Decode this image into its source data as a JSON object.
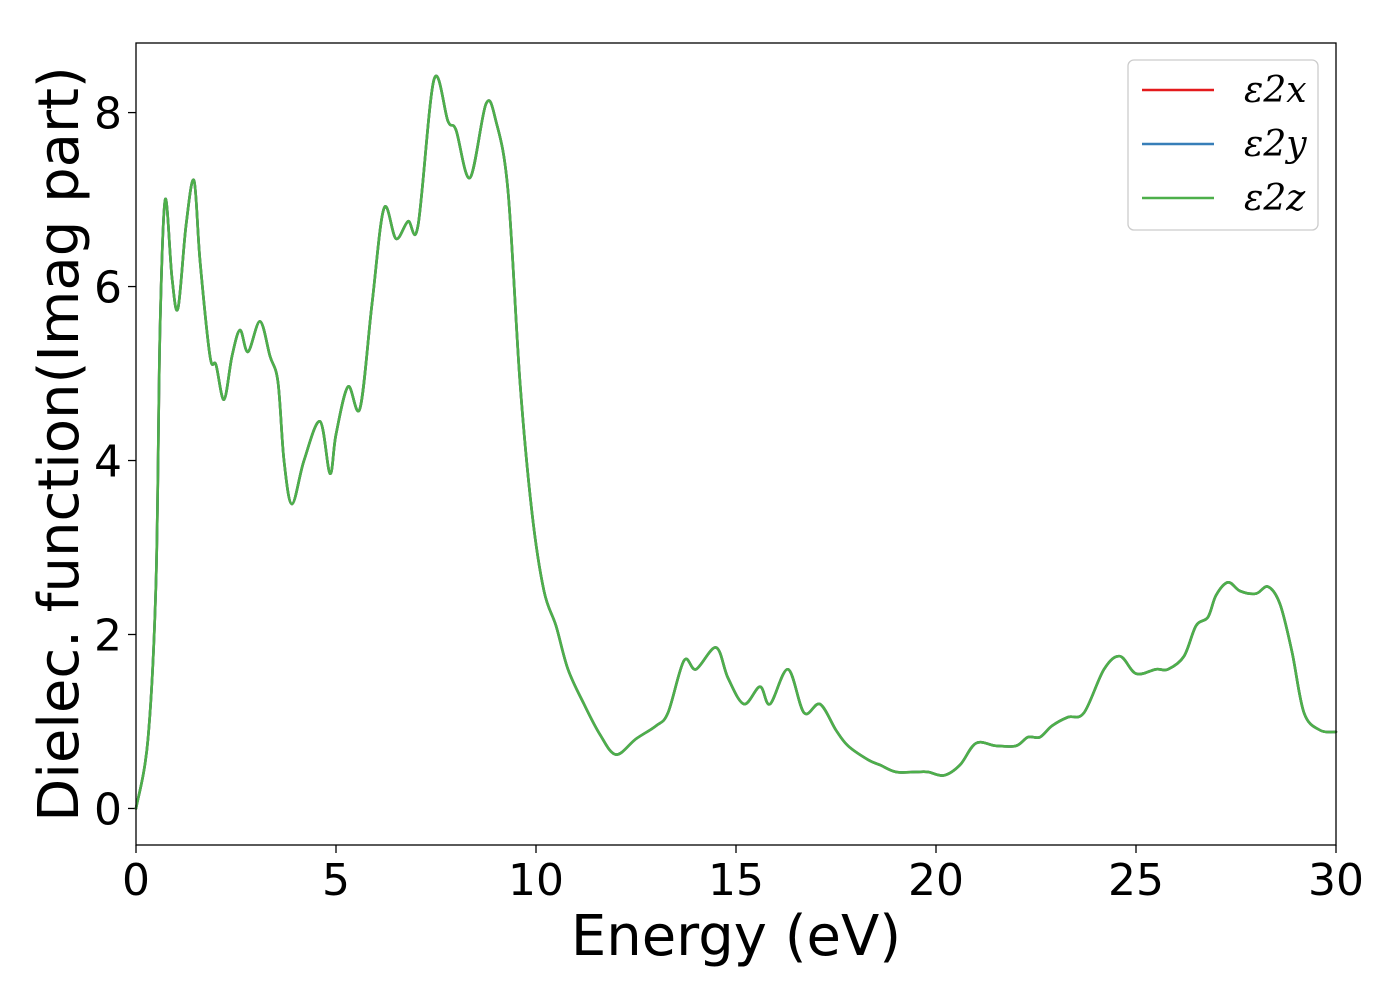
{
  "chart_data": {
    "type": "line",
    "xlabel": "Energy (eV)",
    "ylabel": "Dielec. function(Imag part)",
    "xlim": [
      0,
      30
    ],
    "ylim": [
      -0.42,
      8.8
    ],
    "xticks": [
      0,
      5,
      10,
      15,
      20,
      25,
      30
    ],
    "yticks": [
      0,
      2,
      4,
      6,
      8
    ],
    "legend_position": "top-right",
    "grid": false,
    "series": [
      {
        "name": "ε2x",
        "color": "#e41a1c",
        "x": [
          0,
          0.3,
          0.5,
          0.6,
          0.73,
          0.9,
          1.05,
          1.25,
          1.45,
          1.6,
          1.85,
          2.0,
          2.2,
          2.4,
          2.6,
          2.8,
          3.1,
          3.35,
          3.55,
          3.7,
          3.9,
          4.2,
          4.6,
          4.85,
          5.0,
          5.3,
          5.6,
          5.9,
          6.2,
          6.5,
          6.8,
          7.05,
          7.45,
          7.8,
          8.0,
          8.35,
          8.75,
          9.0,
          9.3,
          9.6,
          9.9,
          10.2,
          10.5,
          10.8,
          11.2,
          11.6,
          12.0,
          12.5,
          13.0,
          13.3,
          13.7,
          14.0,
          14.5,
          14.8,
          15.2,
          15.6,
          15.85,
          16.3,
          16.7,
          17.1,
          17.5,
          17.8,
          18.3,
          18.6,
          19.0,
          19.5,
          19.8,
          20.2,
          20.6,
          21.0,
          21.5,
          22.0,
          22.3,
          22.6,
          22.9,
          23.3,
          23.7,
          24.2,
          24.6,
          25.0,
          25.5,
          25.8,
          26.2,
          26.5,
          26.8,
          27.0,
          27.3,
          27.6,
          28.0,
          28.3,
          28.6,
          28.9,
          29.2,
          29.6,
          30.0
        ],
        "y": [
          0.0,
          0.8,
          2.6,
          5.5,
          7.0,
          6.1,
          5.75,
          6.7,
          7.22,
          6.3,
          5.2,
          5.1,
          4.7,
          5.2,
          5.5,
          5.25,
          5.6,
          5.2,
          4.9,
          4.0,
          3.5,
          4.0,
          4.45,
          3.85,
          4.3,
          4.85,
          4.6,
          5.8,
          6.9,
          6.55,
          6.75,
          6.7,
          8.38,
          7.9,
          7.8,
          7.25,
          8.1,
          7.9,
          7.1,
          4.9,
          3.4,
          2.5,
          2.1,
          1.6,
          1.2,
          0.85,
          0.62,
          0.8,
          0.95,
          1.1,
          1.7,
          1.6,
          1.85,
          1.5,
          1.2,
          1.4,
          1.2,
          1.6,
          1.1,
          1.2,
          0.9,
          0.72,
          0.56,
          0.5,
          0.42,
          0.42,
          0.42,
          0.38,
          0.5,
          0.75,
          0.72,
          0.72,
          0.82,
          0.82,
          0.95,
          1.05,
          1.1,
          1.6,
          1.75,
          1.55,
          1.6,
          1.6,
          1.75,
          2.1,
          2.2,
          2.45,
          2.6,
          2.5,
          2.47,
          2.55,
          2.35,
          1.8,
          1.1,
          0.9,
          0.88
        ]
      },
      {
        "name": "ε2y",
        "color": "#377eb8",
        "x": [
          0,
          0.3,
          0.5,
          0.6,
          0.73,
          0.9,
          1.05,
          1.25,
          1.45,
          1.6,
          1.85,
          2.0,
          2.2,
          2.4,
          2.6,
          2.8,
          3.1,
          3.35,
          3.55,
          3.7,
          3.9,
          4.2,
          4.6,
          4.85,
          5.0,
          5.3,
          5.6,
          5.9,
          6.2,
          6.5,
          6.8,
          7.05,
          7.45,
          7.8,
          8.0,
          8.35,
          8.75,
          9.0,
          9.3,
          9.6,
          9.9,
          10.2,
          10.5,
          10.8,
          11.2,
          11.6,
          12.0,
          12.5,
          13.0,
          13.3,
          13.7,
          14.0,
          14.5,
          14.8,
          15.2,
          15.6,
          15.85,
          16.3,
          16.7,
          17.1,
          17.5,
          17.8,
          18.3,
          18.6,
          19.0,
          19.5,
          19.8,
          20.2,
          20.6,
          21.0,
          21.5,
          22.0,
          22.3,
          22.6,
          22.9,
          23.3,
          23.7,
          24.2,
          24.6,
          25.0,
          25.5,
          25.8,
          26.2,
          26.5,
          26.8,
          27.0,
          27.3,
          27.6,
          28.0,
          28.3,
          28.6,
          28.9,
          29.2,
          29.6,
          30.0
        ],
        "y": [
          0.0,
          0.8,
          2.6,
          5.5,
          7.0,
          6.1,
          5.75,
          6.7,
          7.22,
          6.3,
          5.2,
          5.1,
          4.7,
          5.2,
          5.5,
          5.25,
          5.6,
          5.2,
          4.9,
          4.0,
          3.5,
          4.0,
          4.45,
          3.85,
          4.3,
          4.85,
          4.6,
          5.8,
          6.9,
          6.55,
          6.75,
          6.7,
          8.38,
          7.9,
          7.8,
          7.25,
          8.1,
          7.9,
          7.1,
          4.9,
          3.4,
          2.5,
          2.1,
          1.6,
          1.2,
          0.85,
          0.62,
          0.8,
          0.95,
          1.1,
          1.7,
          1.6,
          1.85,
          1.5,
          1.2,
          1.4,
          1.2,
          1.6,
          1.1,
          1.2,
          0.9,
          0.72,
          0.56,
          0.5,
          0.42,
          0.42,
          0.42,
          0.38,
          0.5,
          0.75,
          0.72,
          0.72,
          0.82,
          0.82,
          0.95,
          1.05,
          1.1,
          1.6,
          1.75,
          1.55,
          1.6,
          1.6,
          1.75,
          2.1,
          2.2,
          2.45,
          2.6,
          2.5,
          2.47,
          2.55,
          2.35,
          1.8,
          1.1,
          0.9,
          0.88
        ]
      },
      {
        "name": "ε2z",
        "color": "#4daf4a",
        "x": [
          0,
          0.3,
          0.5,
          0.6,
          0.73,
          0.9,
          1.05,
          1.25,
          1.45,
          1.6,
          1.85,
          2.0,
          2.2,
          2.4,
          2.6,
          2.8,
          3.1,
          3.35,
          3.55,
          3.7,
          3.9,
          4.2,
          4.6,
          4.85,
          5.0,
          5.3,
          5.6,
          5.9,
          6.2,
          6.5,
          6.8,
          7.05,
          7.45,
          7.8,
          8.0,
          8.35,
          8.75,
          9.0,
          9.3,
          9.6,
          9.9,
          10.2,
          10.5,
          10.8,
          11.2,
          11.6,
          12.0,
          12.5,
          13.0,
          13.3,
          13.7,
          14.0,
          14.5,
          14.8,
          15.2,
          15.6,
          15.85,
          16.3,
          16.7,
          17.1,
          17.5,
          17.8,
          18.3,
          18.6,
          19.0,
          19.5,
          19.8,
          20.2,
          20.6,
          21.0,
          21.5,
          22.0,
          22.3,
          22.6,
          22.9,
          23.3,
          23.7,
          24.2,
          24.6,
          25.0,
          25.5,
          25.8,
          26.2,
          26.5,
          26.8,
          27.0,
          27.3,
          27.6,
          28.0,
          28.3,
          28.6,
          28.9,
          29.2,
          29.6,
          30.0
        ],
        "y": [
          0.0,
          0.8,
          2.6,
          5.5,
          7.0,
          6.1,
          5.75,
          6.7,
          7.22,
          6.3,
          5.2,
          5.1,
          4.7,
          5.2,
          5.5,
          5.25,
          5.6,
          5.2,
          4.9,
          4.0,
          3.5,
          4.0,
          4.45,
          3.85,
          4.3,
          4.85,
          4.6,
          5.8,
          6.9,
          6.55,
          6.75,
          6.7,
          8.38,
          7.9,
          7.8,
          7.25,
          8.1,
          7.9,
          7.1,
          4.9,
          3.4,
          2.5,
          2.1,
          1.6,
          1.2,
          0.85,
          0.62,
          0.8,
          0.95,
          1.1,
          1.7,
          1.6,
          1.85,
          1.5,
          1.2,
          1.4,
          1.2,
          1.6,
          1.1,
          1.2,
          0.9,
          0.72,
          0.56,
          0.5,
          0.42,
          0.42,
          0.42,
          0.38,
          0.5,
          0.75,
          0.72,
          0.72,
          0.82,
          0.82,
          0.95,
          1.05,
          1.1,
          1.6,
          1.75,
          1.55,
          1.6,
          1.6,
          1.75,
          2.1,
          2.2,
          2.45,
          2.6,
          2.5,
          2.47,
          2.55,
          2.35,
          1.8,
          1.1,
          0.9,
          0.88
        ]
      }
    ]
  }
}
